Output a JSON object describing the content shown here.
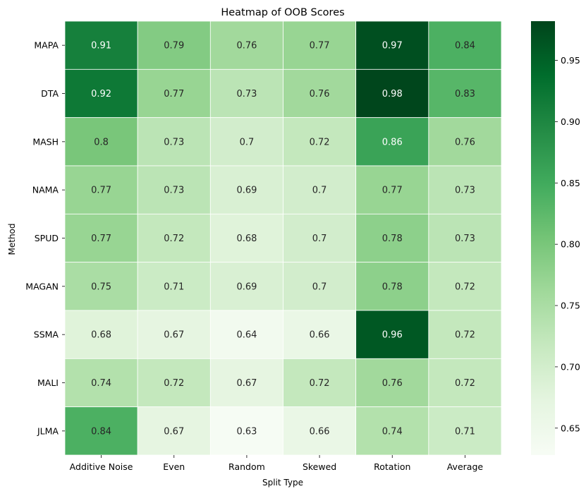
{
  "chart_data": {
    "type": "heatmap",
    "title": "Heatmap of OOB Scores",
    "xlabel": "Split Type",
    "ylabel": "Method",
    "x_categories": [
      "Additive Noise",
      "Even",
      "Random",
      "Skewed",
      "Rotation",
      "Average"
    ],
    "y_categories": [
      "MAPA",
      "DTA",
      "MASH",
      "NAMA",
      "SPUD",
      "MAGAN",
      "SSMA",
      "MALI",
      "JLMA"
    ],
    "values": [
      [
        0.91,
        0.79,
        0.76,
        0.77,
        0.97,
        0.84
      ],
      [
        0.92,
        0.77,
        0.73,
        0.76,
        0.98,
        0.83
      ],
      [
        0.8,
        0.73,
        0.7,
        0.72,
        0.86,
        0.76
      ],
      [
        0.77,
        0.73,
        0.69,
        0.7,
        0.77,
        0.73
      ],
      [
        0.77,
        0.72,
        0.68,
        0.7,
        0.78,
        0.73
      ],
      [
        0.75,
        0.71,
        0.69,
        0.7,
        0.78,
        0.72
      ],
      [
        0.68,
        0.67,
        0.64,
        0.66,
        0.96,
        0.72
      ],
      [
        0.74,
        0.72,
        0.67,
        0.72,
        0.76,
        0.72
      ],
      [
        0.84,
        0.67,
        0.63,
        0.66,
        0.74,
        0.71
      ]
    ],
    "color_range": [
      0.628,
      0.982
    ],
    "colormap": "Greens",
    "colorbar_ticks": [
      0.65,
      0.7,
      0.75,
      0.8,
      0.85,
      0.9,
      0.95
    ],
    "colorbar_tick_labels": [
      "0.65",
      "0.70",
      "0.75",
      "0.80",
      "0.85",
      "0.90",
      "0.95"
    ],
    "grid": false
  }
}
